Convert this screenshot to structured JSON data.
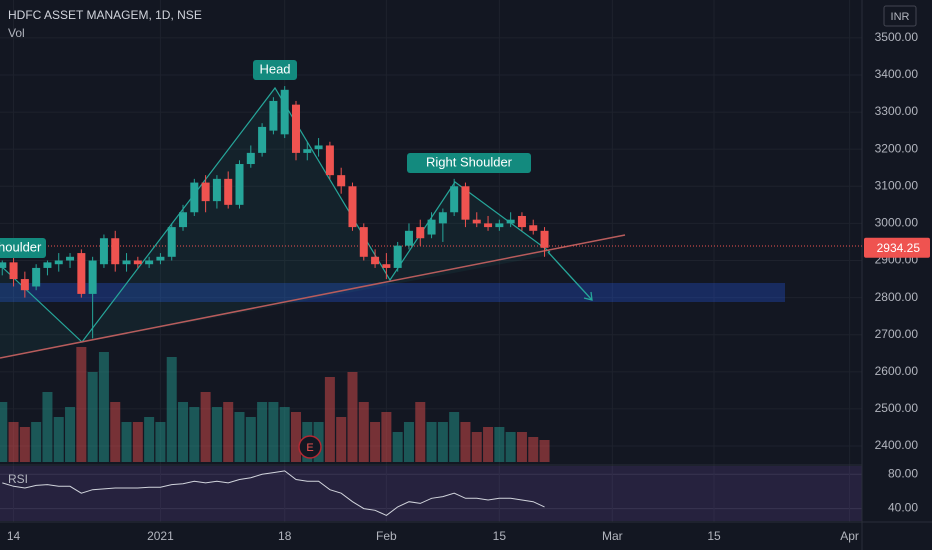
{
  "chart_data": {
    "type": "candlestick",
    "title": "HDFC ASSET MANAGEM, 1D, NSE",
    "volume_label": "Vol",
    "currency": "INR",
    "up_color": "#26a69a",
    "down_color": "#ef5350",
    "x": [
      0,
      1,
      2,
      3,
      4,
      5,
      6,
      7,
      8,
      9,
      10,
      11,
      12,
      13,
      14,
      15,
      16,
      17,
      18,
      19,
      20,
      21,
      22,
      23,
      24,
      25,
      26,
      27,
      28,
      29,
      30,
      31,
      32,
      33,
      34,
      35,
      36,
      37,
      38,
      39,
      40,
      41,
      42,
      43,
      44,
      45,
      46,
      47,
      48
    ],
    "open": [
      2880,
      2895,
      2850,
      2830,
      2880,
      2890,
      2900,
      2920,
      2810,
      2890,
      2960,
      2890,
      2900,
      2890,
      2900,
      2910,
      2990,
      3030,
      3110,
      3060,
      3120,
      3050,
      3160,
      3190,
      3250,
      3240,
      3320,
      3190,
      3200,
      3210,
      3130,
      3100,
      2990,
      2910,
      2890,
      2880,
      2940,
      2990,
      2970,
      3000,
      3030,
      3100,
      3010,
      3000,
      2990,
      3000,
      3020,
      2995,
      2980
    ],
    "high": [
      2900,
      2910,
      2870,
      2890,
      2900,
      2920,
      2920,
      2930,
      2910,
      2970,
      2980,
      2920,
      2910,
      2910,
      2920,
      3000,
      3050,
      3120,
      3130,
      3130,
      3140,
      3170,
      3210,
      3270,
      3340,
      3370,
      3330,
      3220,
      3230,
      3220,
      3150,
      3110,
      3000,
      2930,
      2920,
      2950,
      3000,
      3010,
      3030,
      3040,
      3120,
      3110,
      3030,
      3020,
      3010,
      3030,
      3030,
      3010,
      2990
    ],
    "low": [
      2860,
      2830,
      2800,
      2820,
      2860,
      2870,
      2880,
      2800,
      2690,
      2880,
      2870,
      2870,
      2880,
      2880,
      2890,
      2900,
      2980,
      3020,
      3030,
      3040,
      3040,
      3040,
      3150,
      3180,
      3240,
      3230,
      3170,
      3170,
      3180,
      3120,
      3080,
      2980,
      2900,
      2880,
      2850,
      2870,
      2930,
      2940,
      2960,
      2950,
      3020,
      2990,
      2990,
      2980,
      2980,
      2990,
      2980,
      2970,
      2910
    ],
    "close": [
      2895,
      2850,
      2820,
      2880,
      2895,
      2900,
      2910,
      2810,
      2900,
      2960,
      2890,
      2900,
      2890,
      2900,
      2910,
      2990,
      3030,
      3110,
      3060,
      3120,
      3050,
      3160,
      3190,
      3260,
      3330,
      3360,
      3190,
      3200,
      3210,
      3130,
      3100,
      2990,
      2910,
      2890,
      2880,
      2940,
      2980,
      2960,
      3010,
      3030,
      3100,
      3010,
      3000,
      2990,
      3000,
      3010,
      2990,
      2980,
      2934.25
    ],
    "volume": [
      60,
      40,
      35,
      40,
      70,
      45,
      55,
      115,
      90,
      110,
      60,
      40,
      40,
      45,
      40,
      105,
      60,
      55,
      70,
      55,
      60,
      50,
      45,
      60,
      60,
      55,
      50,
      40,
      40,
      85,
      45,
      90,
      60,
      40,
      50,
      30,
      40,
      60,
      40,
      40,
      50,
      40,
      30,
      35,
      35,
      30,
      30,
      25,
      22
    ],
    "xlim": [
      -0.2,
      76.1
    ],
    "xticks": [
      {
        "value": 1,
        "label": "14"
      },
      {
        "value": 14,
        "label": "2021"
      },
      {
        "value": 25,
        "label": "18"
      },
      {
        "value": 34,
        "label": "Feb"
      },
      {
        "value": 44,
        "label": "15"
      },
      {
        "value": 54,
        "label": "Mar"
      },
      {
        "value": 63,
        "label": "15"
      },
      {
        "value": 75,
        "label": "Apr"
      }
    ],
    "ylim": [
      2357,
      3602
    ],
    "yticks": [
      {
        "value": 2400,
        "label": "2400.00"
      },
      {
        "value": 2500,
        "label": "2500.00"
      },
      {
        "value": 2600,
        "label": "2600.00"
      },
      {
        "value": 2700,
        "label": "2700.00"
      },
      {
        "value": 2800,
        "label": "2800.00"
      },
      {
        "value": 2900,
        "label": "2900.00"
      },
      {
        "value": 3000,
        "label": "3000.00"
      },
      {
        "value": 3100,
        "label": "3100.00"
      },
      {
        "value": 3200,
        "label": "3200.00"
      },
      {
        "value": 3300,
        "label": "3300.00"
      },
      {
        "value": 3400,
        "label": "3400.00"
      },
      {
        "value": 3500,
        "label": "3500.00"
      }
    ],
    "rsi": {
      "label": "RSI",
      "values": [
        70,
        66,
        64,
        67,
        68,
        66,
        66,
        58,
        62,
        63,
        64,
        64,
        64,
        65,
        65,
        68,
        69,
        72,
        70,
        72,
        70,
        74,
        76,
        80,
        82,
        84,
        74,
        72,
        72,
        62,
        58,
        48,
        40,
        38,
        32,
        42,
        48,
        46,
        52,
        54,
        58,
        52,
        52,
        50,
        52,
        52,
        50,
        48,
        42
      ],
      "ylim": [
        25.5,
        89.7
      ],
      "yticks": [
        {
          "value": 40,
          "label": "40.00"
        },
        {
          "value": 80,
          "label": "80.00"
        }
      ]
    },
    "annotations": [
      "houlder",
      "Head",
      "Right Shoulder"
    ],
    "earnings_marker": "E"
  }
}
